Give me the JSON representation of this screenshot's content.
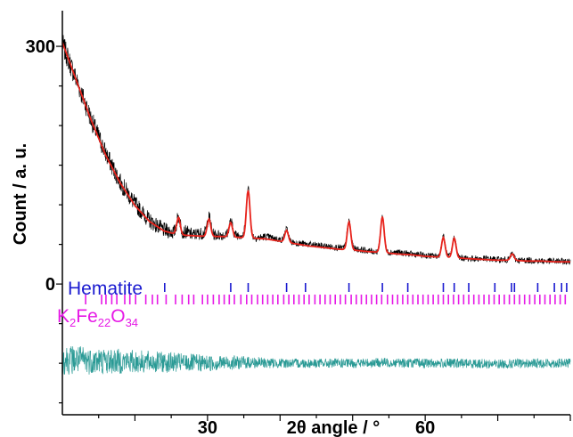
{
  "chart_data": {
    "type": "line",
    "xlabel": "2θ angle / °",
    "ylabel": "Count / a. u.",
    "xlim": [
      10,
      80
    ],
    "ylim": [
      -165,
      345
    ],
    "x_ticks": [
      30,
      60
    ],
    "y_ticks": [
      0,
      300
    ],
    "series": [
      {
        "role": "observed",
        "color": "#000000",
        "x": [
          10,
          12,
          14,
          16,
          18,
          20,
          22,
          24,
          25,
          26,
          27,
          28,
          29,
          30,
          31,
          32,
          33,
          34,
          35,
          36,
          37,
          38,
          40,
          42,
          44,
          46,
          48,
          50,
          52,
          54,
          56,
          58,
          60,
          62,
          64,
          66,
          68,
          70,
          72,
          74,
          76,
          78,
          80
        ],
        "values": [
          303,
          256,
          207,
          164,
          128,
          101,
          80,
          68,
          66,
          63,
          66,
          62,
          64,
          63,
          62,
          62,
          61,
          62,
          62,
          60,
          58,
          60,
          56,
          52,
          50,
          48,
          46,
          45,
          42,
          40,
          40,
          38,
          36,
          35,
          34,
          32,
          32,
          31,
          30,
          30,
          29,
          29,
          28
        ]
      },
      {
        "role": "calculated",
        "color": "#e8231c",
        "x": [
          10,
          12,
          14,
          16,
          18,
          20,
          22,
          24,
          26,
          28,
          30,
          32,
          34,
          36,
          38,
          40,
          42,
          44,
          46,
          48,
          50,
          52,
          54,
          56,
          58,
          60,
          62,
          64,
          66,
          68,
          70,
          72,
          74,
          76,
          78,
          80
        ],
        "values": [
          305,
          255,
          206,
          162,
          127,
          99,
          79,
          67,
          62,
          61,
          60,
          60,
          59,
          58,
          57,
          54,
          51,
          48,
          46,
          44,
          43,
          41,
          40,
          38,
          37,
          35,
          34,
          33,
          32,
          31,
          30,
          30,
          29,
          29,
          28,
          28
        ]
      },
      {
        "role": "difference",
        "color": "#2a9a95",
        "x": [
          10,
          15,
          20,
          25,
          30,
          35,
          40,
          45,
          50,
          55,
          60,
          65,
          70,
          75,
          80
        ],
        "values": [
          -95,
          -97,
          -98,
          -99,
          -100,
          -99,
          -100,
          -100,
          -100,
          -99,
          -100,
          -100,
          -101,
          -100,
          -100
        ]
      }
    ],
    "peaks": [
      {
        "x": 26.0,
        "height": 22
      },
      {
        "x": 30.2,
        "height": 22
      },
      {
        "x": 33.2,
        "height": 18
      },
      {
        "x": 35.6,
        "height": 60
      },
      {
        "x": 40.9,
        "height": 15
      },
      {
        "x": 49.5,
        "height": 35
      },
      {
        "x": 54.1,
        "height": 45
      },
      {
        "x": 62.5,
        "height": 25
      },
      {
        "x": 64.0,
        "height": 25
      },
      {
        "x": 72.0,
        "height": 8
      }
    ],
    "reflection_rows": [
      {
        "name": "Hematite",
        "color": "#1a1ad0",
        "positions": [
          24.1,
          33.2,
          35.6,
          40.9,
          43.5,
          49.5,
          54.1,
          57.6,
          62.5,
          64.0,
          66.0,
          69.6,
          71.9,
          72.3,
          75.5,
          77.8,
          78.8,
          79.5
        ]
      },
      {
        "name_parts": {
          "a": "K",
          "a_sub": "2",
          "b": "Fe",
          "b_sub": "22",
          "c": "O",
          "c_sub": "34"
        },
        "color": "#e619e6",
        "positions": [
          13.2,
          15.4,
          16.0,
          16.8,
          17.5,
          18.6,
          19.3,
          20.1,
          21.5,
          22.4,
          23.1,
          24.3,
          25.6,
          26.5,
          27.4,
          28.1,
          29.3,
          30.0,
          30.8,
          31.6,
          32.3,
          33.0,
          33.7,
          34.6,
          35.4,
          36.1,
          36.9,
          37.6,
          38.3,
          39.0,
          39.7,
          40.5,
          41.2,
          41.9,
          42.6,
          43.3,
          44.0,
          44.8,
          45.5,
          46.2,
          46.9,
          47.6,
          48.3,
          49.0,
          49.8,
          50.5,
          51.2,
          51.9,
          52.6,
          53.3,
          54.0,
          54.8,
          55.5,
          56.2,
          56.9,
          57.6,
          58.3,
          59.0,
          59.7,
          60.4,
          61.1,
          61.8,
          62.5,
          63.2,
          63.9,
          64.6,
          65.3,
          66.0,
          66.7,
          67.4,
          68.1,
          68.8,
          69.5,
          70.2,
          70.9,
          71.6,
          72.3,
          73.0,
          73.7,
          74.4,
          75.1,
          75.8,
          76.5,
          77.2,
          77.9,
          78.6,
          79.3
        ]
      }
    ]
  }
}
